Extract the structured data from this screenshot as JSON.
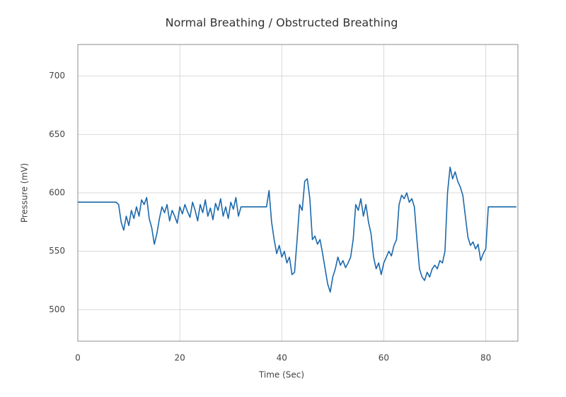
{
  "chart_data": {
    "type": "line",
    "title": "Normal Breathing / Obstructed Breathing",
    "xlabel": "Time (Sec)",
    "ylabel": "Pressure (mV)",
    "xlim": [
      0,
      86.3
    ],
    "ylim": [
      473,
      727
    ],
    "xticks": [
      0,
      20,
      40,
      60,
      80
    ],
    "yticks": [
      500,
      550,
      600,
      650,
      700
    ],
    "grid": true,
    "series": [
      {
        "name": "Pressure",
        "color": "#1b69ab",
        "x": [
          0,
          0.5,
          1,
          1.5,
          2,
          2.5,
          3,
          3.5,
          4,
          4.5,
          5,
          5.5,
          6,
          6.5,
          7,
          7.5,
          8,
          8.5,
          9,
          9.5,
          10,
          10.5,
          11,
          11.5,
          12,
          12.5,
          13,
          13.5,
          14,
          14.5,
          15,
          15.5,
          16,
          16.5,
          17,
          17.5,
          18,
          18.5,
          19,
          19.5,
          20,
          20.5,
          21,
          21.5,
          22,
          22.5,
          23,
          23.5,
          24,
          24.5,
          25,
          25.5,
          26,
          26.5,
          27,
          27.5,
          28,
          28.5,
          29,
          29.5,
          30,
          30.5,
          31,
          31.5,
          32,
          32.5,
          33,
          33.5,
          34,
          34.5,
          35,
          35.5,
          36,
          36.5,
          37,
          37.5,
          38,
          38.5,
          39,
          39.5,
          40,
          40.5,
          41,
          41.5,
          42,
          42.5,
          43,
          43.5,
          44,
          44.5,
          45,
          45.5,
          46,
          46.5,
          47,
          47.5,
          48,
          48.5,
          49,
          49.5,
          50,
          50.5,
          51,
          51.5,
          52,
          52.5,
          53,
          53.5,
          54,
          54.5,
          55,
          55.5,
          56,
          56.5,
          57,
          57.5,
          58,
          58.5,
          59,
          59.5,
          60,
          60.5,
          61,
          61.5,
          62,
          62.5,
          63,
          63.5,
          64,
          64.5,
          65,
          65.5,
          66,
          66.5,
          67,
          67.5,
          68,
          68.5,
          69,
          69.5,
          70,
          70.5,
          71,
          71.5,
          72,
          72.5,
          73,
          73.5,
          74,
          74.5,
          75,
          75.5,
          76,
          76.5,
          77,
          77.5,
          78,
          78.5,
          79,
          79.5,
          80,
          80.5,
          81,
          81.5,
          82,
          82.5,
          83,
          83.5,
          84,
          84.5,
          85,
          85.5,
          86
        ],
        "values": [
          592,
          592,
          592,
          592,
          592,
          592,
          592,
          592,
          592,
          592,
          592,
          592,
          592,
          592,
          592,
          592,
          590,
          575,
          568,
          580,
          572,
          585,
          578,
          588,
          580,
          594,
          590,
          596,
          578,
          570,
          556,
          565,
          578,
          588,
          583,
          590,
          576,
          585,
          580,
          574,
          588,
          582,
          590,
          584,
          579,
          592,
          585,
          576,
          590,
          583,
          594,
          580,
          587,
          577,
          591,
          585,
          595,
          580,
          588,
          578,
          592,
          586,
          596,
          580,
          588,
          588,
          588,
          588,
          588,
          588,
          588,
          588,
          588,
          588,
          588,
          602,
          575,
          560,
          548,
          555,
          545,
          550,
          540,
          545,
          530,
          532,
          560,
          590,
          585,
          610,
          612,
          595,
          560,
          563,
          556,
          560,
          548,
          535,
          522,
          515,
          528,
          535,
          545,
          538,
          542,
          536,
          540,
          545,
          560,
          590,
          585,
          595,
          580,
          590,
          575,
          565,
          545,
          535,
          540,
          530,
          540,
          545,
          550,
          546,
          555,
          560,
          590,
          598,
          595,
          600,
          592,
          595,
          588,
          560,
          535,
          528,
          525,
          532,
          528,
          535,
          538,
          535,
          542,
          540,
          550,
          600,
          622,
          612,
          618,
          610,
          605,
          598,
          580,
          562,
          555,
          558,
          552,
          556,
          542,
          548,
          552,
          588,
          588,
          588,
          588,
          588,
          588,
          588,
          588,
          588,
          588,
          588,
          588
        ]
      }
    ]
  }
}
